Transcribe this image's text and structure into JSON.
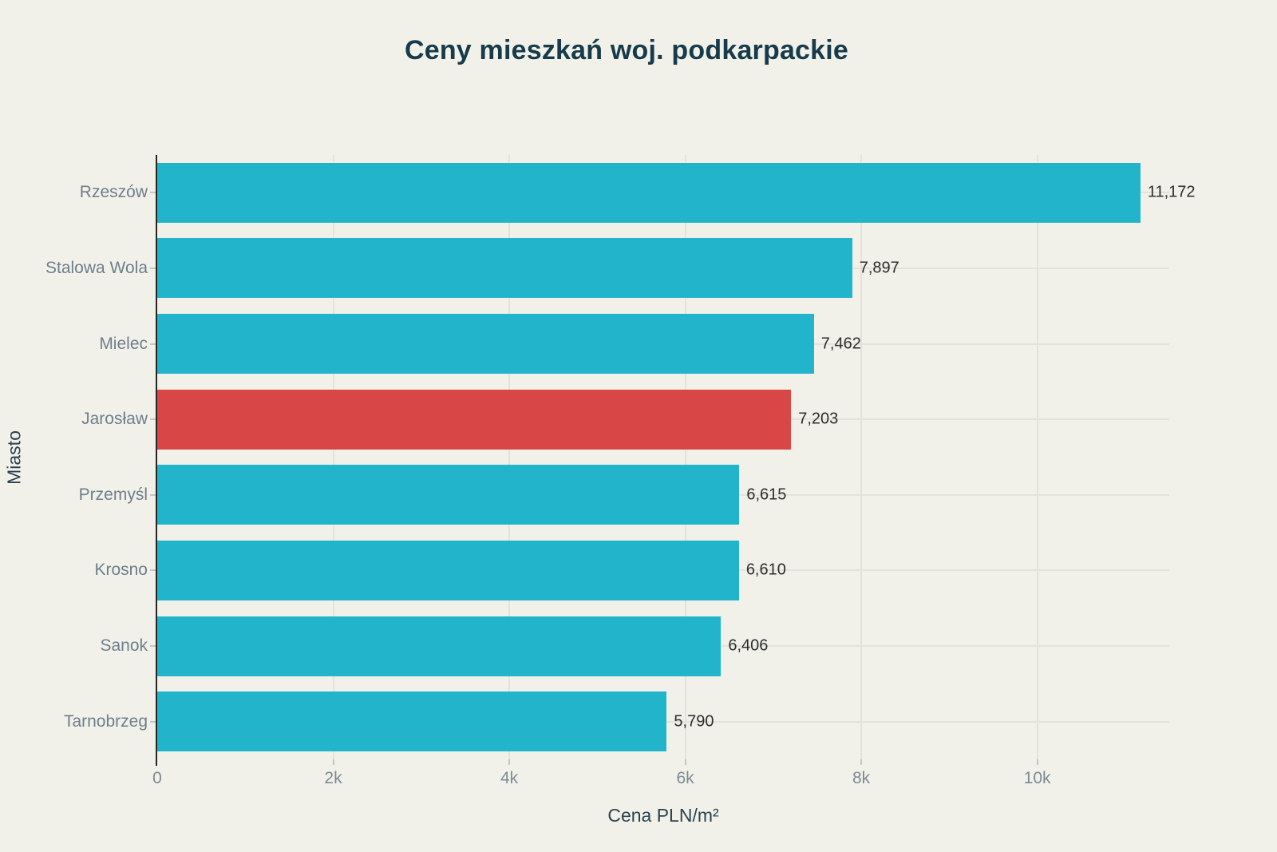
{
  "title": "Ceny mieszkań woj. podkarpackie",
  "chart_data": {
    "type": "bar",
    "orientation": "horizontal",
    "title": "Ceny mieszkań woj. podkarpackie",
    "xlabel": "Cena PLN/m²",
    "ylabel": "Miasto",
    "categories": [
      "Rzeszów",
      "Stalowa Wola",
      "Mielec",
      "Jarosław",
      "Przemyśl",
      "Krosno",
      "Sanok",
      "Tarnobrzeg"
    ],
    "values": [
      11172,
      7897,
      7462,
      7203,
      6615,
      6610,
      6406,
      5790
    ],
    "value_labels": [
      "11,172",
      "7,897",
      "7,462",
      "7,203",
      "6,615",
      "6,610",
      "6,406",
      "5,790"
    ],
    "highlighted_category": "Jarosław",
    "xlim": [
      0,
      11500
    ],
    "x_ticks": [
      {
        "value": 0,
        "label": "0"
      },
      {
        "value": 2000,
        "label": "2k"
      },
      {
        "value": 4000,
        "label": "4k"
      },
      {
        "value": 6000,
        "label": "6k"
      },
      {
        "value": 8000,
        "label": "8k"
      },
      {
        "value": 10000,
        "label": "10k"
      }
    ],
    "grid": true,
    "legend": "none",
    "colors": {
      "bar": "#21b4cb",
      "highlight": "#d94646",
      "background": "#f1f1ea",
      "grid": "#e3e3dc",
      "title": "#173b4a",
      "category_label": "#6e7e8c",
      "tick_label": "#7d8a93",
      "value_label": "#2d2d2d",
      "axis_title": "#2b4251",
      "axis_line": "#262626",
      "tick_mark": "#c6c6c0"
    }
  }
}
